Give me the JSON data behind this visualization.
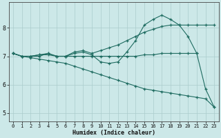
{
  "xlabel": "Humidex (Indice chaleur)",
  "background_color": "#cce8e8",
  "grid_color": "#aacccc",
  "line_color": "#1e6b60",
  "xlim": [
    -0.5,
    23.5
  ],
  "ylim": [
    4.7,
    8.9
  ],
  "x_ticks": [
    0,
    1,
    2,
    3,
    4,
    5,
    6,
    7,
    8,
    9,
    10,
    11,
    12,
    13,
    14,
    15,
    16,
    17,
    18,
    19,
    20,
    21,
    22,
    23
  ],
  "y_ticks": [
    5,
    6,
    7,
    8
  ],
  "line1_x": [
    0,
    1,
    2,
    3,
    4,
    5,
    6,
    7,
    8,
    9,
    10,
    11,
    12,
    13,
    14,
    15,
    16,
    17,
    18,
    19,
    20,
    21
  ],
  "line1_y": [
    7.1,
    7.0,
    7.0,
    7.05,
    7.05,
    7.0,
    7.0,
    7.0,
    7.0,
    7.0,
    7.0,
    7.0,
    7.0,
    7.0,
    7.0,
    7.05,
    7.05,
    7.1,
    7.1,
    7.1,
    7.1,
    7.1
  ],
  "line2_x": [
    0,
    1,
    2,
    3,
    4,
    5,
    6,
    7,
    8,
    9,
    10,
    11,
    12,
    13,
    14,
    15,
    16,
    17,
    18,
    19,
    20,
    21,
    22,
    23
  ],
  "line2_y": [
    7.1,
    7.0,
    7.0,
    7.0,
    7.1,
    7.0,
    7.0,
    7.15,
    7.2,
    7.1,
    7.2,
    7.3,
    7.4,
    7.55,
    7.7,
    7.85,
    7.95,
    8.05,
    8.1,
    8.1,
    8.1,
    8.1,
    8.1,
    8.1
  ],
  "line3_x": [
    0,
    1,
    2,
    3,
    4,
    5,
    6,
    7,
    8,
    9,
    10,
    11,
    12,
    13,
    14,
    15,
    16,
    17,
    18,
    19,
    20,
    21,
    22,
    23
  ],
  "line3_y": [
    7.1,
    7.0,
    7.0,
    7.05,
    7.1,
    7.0,
    7.0,
    7.1,
    7.15,
    7.05,
    6.8,
    6.75,
    6.8,
    7.15,
    7.55,
    8.1,
    8.3,
    8.45,
    8.3,
    8.1,
    7.7,
    7.1,
    5.85,
    5.2
  ],
  "line4_x": [
    0,
    1,
    2,
    3,
    4,
    5,
    6,
    7,
    8,
    9,
    10,
    11,
    12,
    13,
    14,
    15,
    16,
    17,
    18,
    19,
    20,
    21,
    22,
    23
  ],
  "line4_y": [
    7.1,
    7.0,
    6.95,
    6.9,
    6.85,
    6.8,
    6.75,
    6.65,
    6.55,
    6.45,
    6.35,
    6.25,
    6.15,
    6.05,
    5.95,
    5.85,
    5.8,
    5.75,
    5.7,
    5.65,
    5.6,
    5.55,
    5.5,
    5.2
  ]
}
